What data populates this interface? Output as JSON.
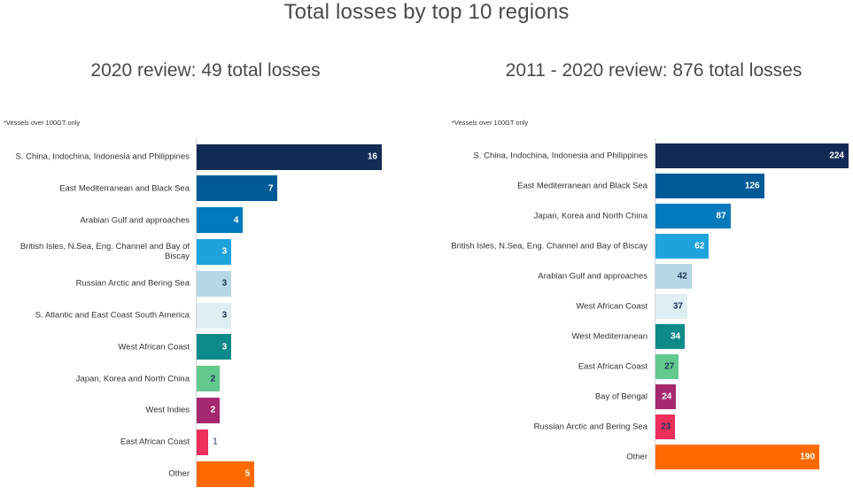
{
  "title": "Total losses by top 10 regions",
  "chart_data": [
    {
      "type": "bar",
      "orientation": "horizontal",
      "title": "2020 review: 49 total losses",
      "note": "*Vessels over 100GT only",
      "xlabel": "",
      "ylabel": "",
      "xlim": [
        0,
        16
      ],
      "grid": false,
      "categories": [
        "S. China, Indochina, Indonesia and Philippines",
        "East Mediterranean and Black Sea",
        "Arabian Gulf and approaches",
        "British Isles, N.Sea, Eng. Channel and Bay of Biscay",
        "Russian Arctic and Bering Sea",
        "S. Atlantic and East Coast South America",
        "West African Coast",
        "Japan, Korea and North China",
        "West Indies",
        "East African Coast",
        "Other"
      ],
      "values": [
        16,
        7,
        4,
        3,
        3,
        3,
        3,
        2,
        2,
        1,
        5
      ],
      "colors": [
        "#122b55",
        "#005a98",
        "#0379bc",
        "#1ea3dc",
        "#b5d7e6",
        "#deeef4",
        "#0c8a8a",
        "#63c98e",
        "#a62870",
        "#ee2e5d",
        "#ff6a00"
      ],
      "label_colors": [
        "#ffffff",
        "#ffffff",
        "#ffffff",
        "#ffffff",
        "#1d3557",
        "#1d3557",
        "#ffffff",
        "#1d3557",
        "#ffffff",
        "#1d3557",
        "#ffffff"
      ]
    },
    {
      "type": "bar",
      "orientation": "horizontal",
      "title": "2011 - 2020 review: 876 total losses",
      "note": "*Vessels over 100GT only",
      "xlabel": "",
      "ylabel": "",
      "xlim": [
        0,
        224
      ],
      "grid": false,
      "categories": [
        "S. China, Indochina, Indonesia and Philippines",
        "East Mediterranean and Black Sea",
        "Japan, Korea and North China",
        "British Isles, N.Sea, Eng. Channel and Bay of Biscay",
        "Arabian Gulf and approaches",
        "West African Coast",
        "West Mediterranean",
        "East African Coast",
        "Bay of Bengal",
        "Russian Arctic and Bering Sea",
        "Other"
      ],
      "values": [
        224,
        126,
        87,
        62,
        42,
        37,
        34,
        27,
        24,
        23,
        190
      ],
      "colors": [
        "#122b55",
        "#005a98",
        "#0379bc",
        "#1ea3dc",
        "#b5d7e6",
        "#deeef4",
        "#0c8a8a",
        "#63c98e",
        "#a62870",
        "#ee2e5d",
        "#ff6a00"
      ],
      "label_colors": [
        "#ffffff",
        "#ffffff",
        "#ffffff",
        "#ffffff",
        "#1d3557",
        "#1d3557",
        "#ffffff",
        "#1d3557",
        "#ffffff",
        "#1d3557",
        "#ffffff"
      ]
    }
  ]
}
